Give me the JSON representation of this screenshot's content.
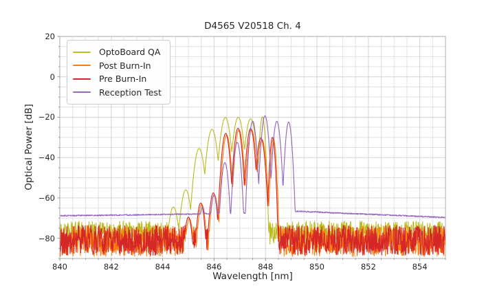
{
  "figure": {
    "background": "#ffffff"
  },
  "colors": {
    "grid_major": "#d4d4d4",
    "grid_minor": "#e0e0e0",
    "frame": "#ababab",
    "tick_mark": "#8c8c8c",
    "text": "#262626",
    "background": "#ffffff"
  },
  "chart_data": {
    "type": "line",
    "title": "D4565 V20518 Ch. 4",
    "xlabel": "Wavelength [nm]",
    "ylabel": "Optical Power [dB]",
    "xlim": [
      840,
      855
    ],
    "ylim": [
      -90,
      20
    ],
    "xticks": [
      840,
      842,
      844,
      846,
      848,
      850,
      852,
      854
    ],
    "xtick_labels": [
      "840",
      "842",
      "844",
      "846",
      "848",
      "850",
      "852",
      "854"
    ],
    "yticks": [
      20,
      0,
      -20,
      -40,
      -60,
      -80
    ],
    "ytick_labels": [
      "20",
      "0",
      "−20",
      "−40",
      "−60",
      "−80"
    ],
    "grid": {
      "show": true,
      "x_minor_step_nm": 0.5,
      "y_minor_step_db": 5
    },
    "legend_position": "upper-left",
    "mode_half_spacing_nm": 0.24,
    "sample_step_nm": 0.0125,
    "line_width": 1.15,
    "series": [
      {
        "name": "OptoBoard QA",
        "color": "#bcbd22",
        "notch_drop_db": 16,
        "edge_drop_last_db": 55,
        "noise_floor": {
          "top_db": -71.5,
          "depth_db": 12
        },
        "modes": [
          [
            844.42,
            -64.5
          ],
          [
            844.9,
            -56.0
          ],
          [
            845.42,
            -35.5
          ],
          [
            845.92,
            -26.0
          ],
          [
            846.44,
            -20.1
          ],
          [
            846.94,
            -20.1
          ],
          [
            847.42,
            -20.8
          ],
          [
            847.88,
            -19.8
          ]
        ]
      },
      {
        "name": "Post Burn-In",
        "color": "#ff7f0e",
        "notch_drop_db": 27,
        "edge_drop_last_db": 60,
        "noise_floor": {
          "top_db": -74.0,
          "depth_db": 15
        },
        "modes": [
          [
            845.04,
            -70.3
          ],
          [
            845.52,
            -63.3
          ],
          [
            846.01,
            -58.3
          ],
          [
            846.49,
            -29.0
          ],
          [
            846.97,
            -26.3
          ],
          [
            847.46,
            -26.4
          ],
          [
            847.86,
            -31.0
          ],
          [
            848.31,
            -30.6
          ]
        ]
      },
      {
        "name": "Pre Burn-In",
        "color": "#d62728",
        "notch_drop_db": 27,
        "edge_drop_last_db": 60,
        "noise_floor": {
          "top_db": -73.5,
          "depth_db": 15
        },
        "modes": [
          [
            845.0,
            -69.5
          ],
          [
            845.48,
            -62.5
          ],
          [
            845.97,
            -57.5
          ],
          [
            846.45,
            -28.0
          ],
          [
            846.93,
            -25.5
          ],
          [
            847.42,
            -25.6
          ],
          [
            847.82,
            -30.3
          ],
          [
            848.27,
            -30.0
          ]
        ]
      },
      {
        "name": "Reception Test",
        "color": "#9467bd",
        "notch_drop_db": 33,
        "edge_drop_last_db": 40,
        "smooth_floor_nodes": [
          [
            840.0,
            -68.8
          ],
          [
            843.0,
            -68.4
          ],
          [
            845.0,
            -68.0
          ],
          [
            846.5,
            -67.6
          ],
          [
            848.5,
            -67.0
          ],
          [
            849.3,
            -66.6
          ],
          [
            851.0,
            -67.6
          ],
          [
            853.0,
            -68.6
          ],
          [
            855.0,
            -69.7
          ]
        ],
        "floor_jitter_db": 0.3,
        "modes": [
          [
            845.55,
            -64.5
          ],
          [
            846.0,
            -58.5
          ],
          [
            846.42,
            -42.5
          ],
          [
            846.9,
            -32.5
          ],
          [
            847.5,
            -22.0
          ],
          [
            847.98,
            -19.3
          ],
          [
            848.44,
            -22.0
          ],
          [
            848.9,
            -22.4
          ]
        ]
      }
    ]
  }
}
